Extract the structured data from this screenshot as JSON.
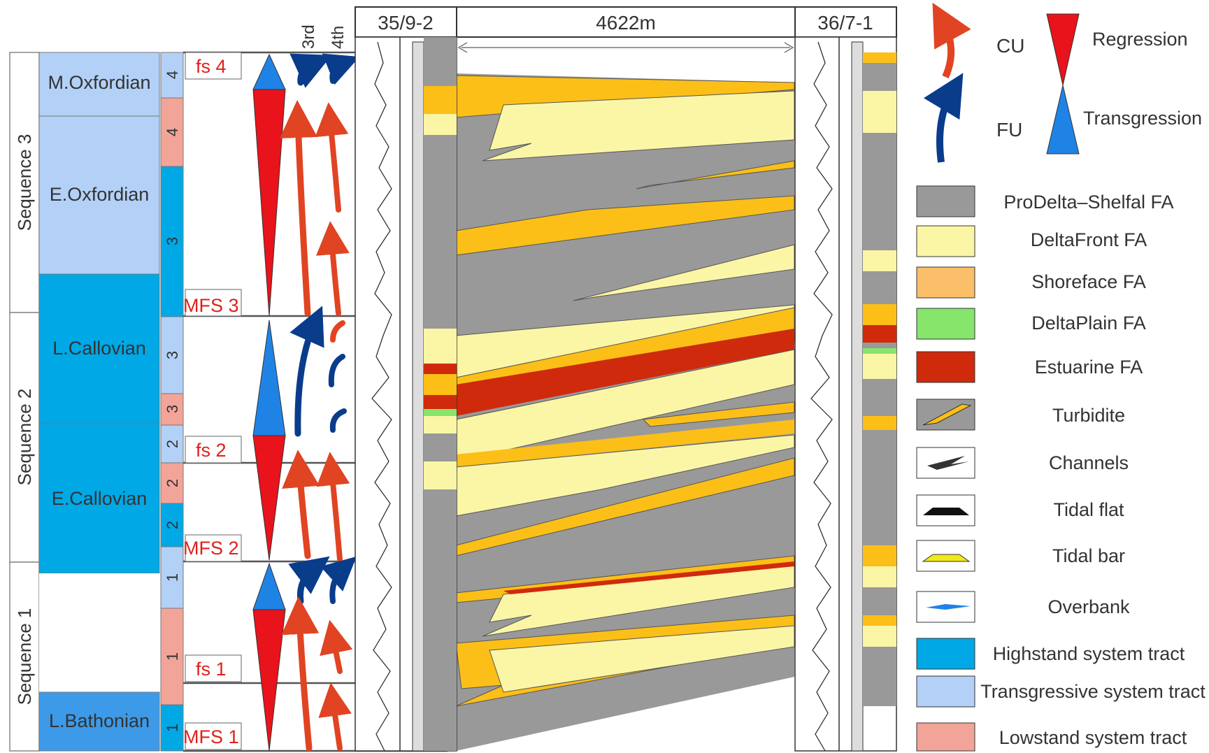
{
  "sequences": [
    "Sequence 3",
    "Sequence 2",
    "Sequence 1"
  ],
  "stages": [
    "M.Oxfordian",
    "E.Oxfordian",
    "L.Callovian",
    "E.Callovian",
    "",
    "L.Bathonian"
  ],
  "tract_numbers": [
    "4",
    "4",
    "3",
    "3",
    "3",
    "2",
    "2",
    "2",
    "1",
    "1",
    "1"
  ],
  "surfaces": [
    "fs 4",
    "MFS 3",
    "fs 2",
    "MFS 2",
    "fs 1",
    "MFS 1"
  ],
  "cycle_headers": [
    "3rd",
    "4th"
  ],
  "wells": [
    "35/9-2",
    "36/7-1"
  ],
  "distance": "4622m",
  "legend": {
    "cu": "CU",
    "fu": "FU",
    "regression": "Regression",
    "transgression": "Transgression",
    "items": [
      "ProDelta–Shelfal FA",
      "DeltaFront FA",
      "Shoreface FA",
      "DeltaPlain FA",
      "Estuarine FA",
      "Turbidite",
      "Channels",
      "Tidal flat",
      "Tidal bar",
      "Overbank",
      "Highstand system tract",
      "Transgressive system tract",
      "Lowstand system tract"
    ]
  },
  "colors": {
    "prodelta": "#999999",
    "deltafront": "#fbf5a6",
    "shoreface": "#fbbf18",
    "deltaplain": "#86e56b",
    "estuarine": "#cf2a0c",
    "hst": "#00a8e6",
    "tst": "#b3d1f7",
    "lst": "#f3a499",
    "regression": "#e8131b",
    "transgression": "#1f83e6",
    "cu_arrow": "#e04422",
    "fu_arrow": "#0a3c8c"
  }
}
